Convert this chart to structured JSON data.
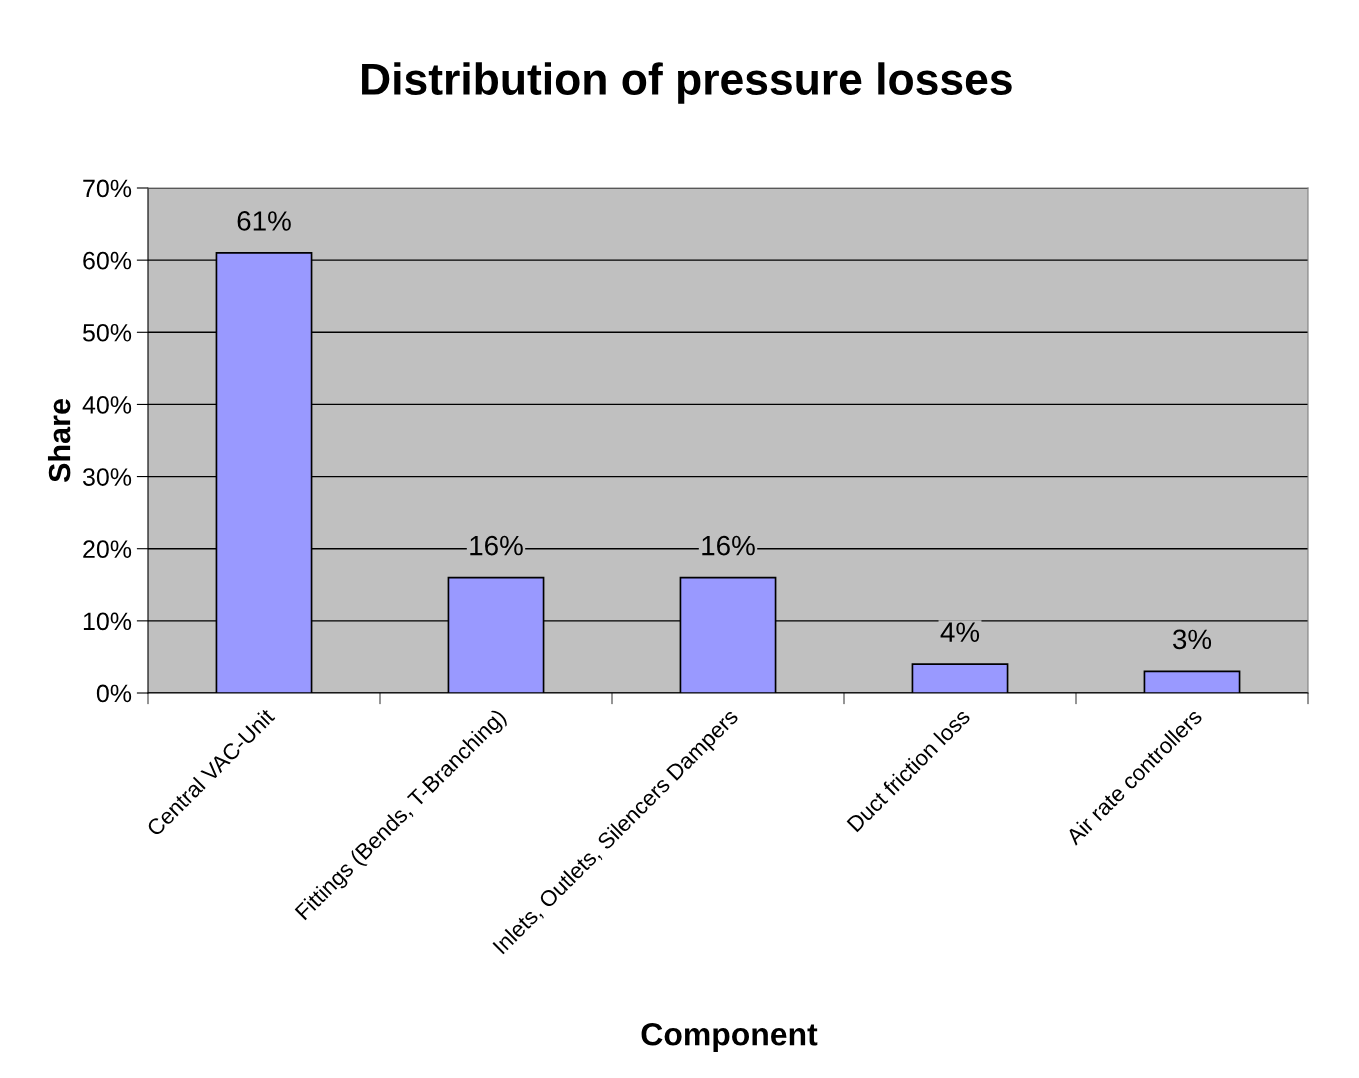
{
  "chart_data": {
    "type": "bar",
    "title": "Distribution of pressure losses",
    "xlabel": "Component",
    "ylabel": "Share",
    "categories": [
      "Central VAC-Unit",
      "Fittings (Bends, T-Branching)",
      "Inlets, Outlets, Silencers Dampers",
      "Duct friction loss",
      "Air rate controllers"
    ],
    "values": [
      61,
      16,
      16,
      4,
      3
    ],
    "value_labels": [
      "61%",
      "16%",
      "16%",
      "4%",
      "3%"
    ],
    "color": "#9999ff",
    "ylim": [
      0,
      70
    ],
    "yticks": [
      {
        "value": 0,
        "label": "0%"
      },
      {
        "value": 10,
        "label": "10%"
      },
      {
        "value": 20,
        "label": "20%"
      },
      {
        "value": 30,
        "label": "30%"
      },
      {
        "value": 40,
        "label": "40%"
      },
      {
        "value": 50,
        "label": "50%"
      },
      {
        "value": 60,
        "label": "60%"
      },
      {
        "value": 70,
        "label": "70%"
      }
    ],
    "grid": "y",
    "legend": false
  }
}
